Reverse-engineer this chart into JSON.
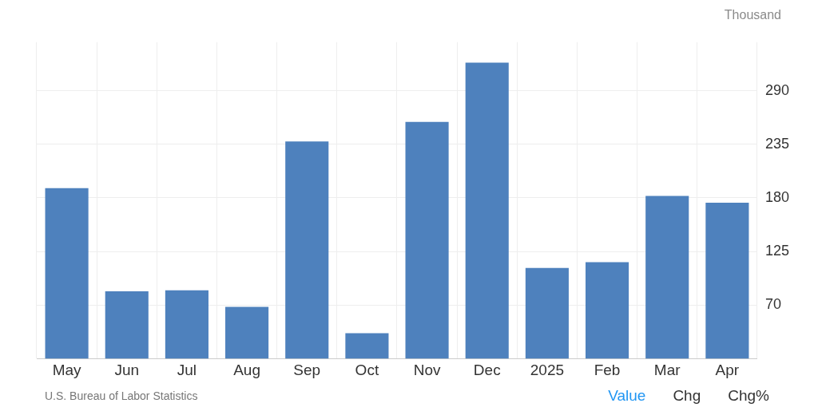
{
  "chart_data": {
    "type": "bar",
    "ylabel": "Thousand",
    "categories": [
      "May",
      "Jun",
      "Jul",
      "Aug",
      "Sep",
      "Oct",
      "Nov",
      "Dec",
      "2025",
      "Feb",
      "Mar",
      "Apr"
    ],
    "values": [
      190,
      84,
      85,
      68,
      238,
      41,
      258,
      319,
      108,
      114,
      182,
      175
    ],
    "color": "#4e81bd",
    "ylim": [
      15,
      340
    ],
    "yticks": [
      70,
      125,
      180,
      235,
      290
    ],
    "grid": true,
    "legend": false,
    "annotations": [
      "U.S. Bureau of Labor Statistics",
      "Value",
      "Chg",
      "Chg%"
    ]
  }
}
